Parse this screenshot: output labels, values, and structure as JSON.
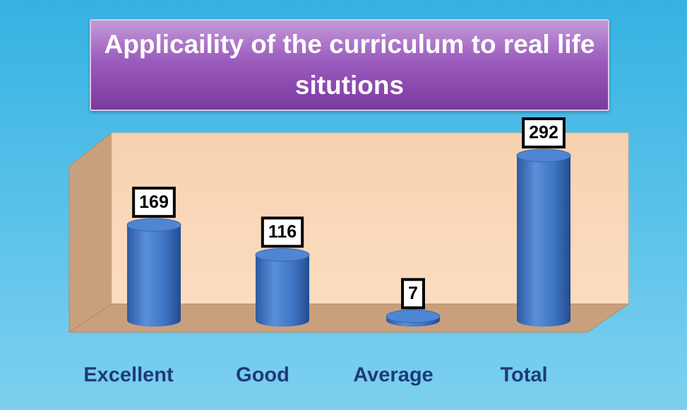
{
  "chart_data": {
    "type": "bar3d",
    "title": "Applicaility of the curriculum to real life situtions",
    "categories": [
      "Excellent",
      "Good",
      "Average",
      "Total"
    ],
    "values": [
      169,
      116,
      7,
      292
    ],
    "color": "#3f74c4"
  }
}
